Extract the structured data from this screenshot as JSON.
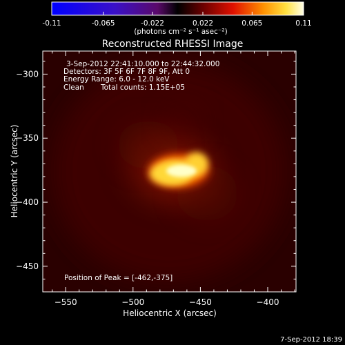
{
  "colorbar": {
    "ticks": [
      "-0.11",
      "-0.065",
      "-0.022",
      "0.022",
      "0.065",
      "0.11"
    ],
    "tick_values": [
      -0.11,
      -0.065,
      -0.022,
      0.022,
      0.065,
      0.11
    ],
    "range": [
      -0.11,
      0.11
    ],
    "units_label": "(photons cm⁻² s⁻¹ asec⁻²)"
  },
  "chart_data": {
    "type": "heatmap",
    "title": "Reconstructed RHESSI Image",
    "xlabel": "Heliocentric X (arcsec)",
    "ylabel": "Heliocentric Y (arcsec)",
    "xlim": [
      -567,
      -379
    ],
    "ylim": [
      -470,
      -282
    ],
    "xticks": [
      -550,
      -500,
      -450,
      -400
    ],
    "yticks": [
      -300,
      -350,
      -400,
      -450
    ],
    "source": {
      "peak_x": -462,
      "peak_y": -375,
      "peak_flux": 0.11
    },
    "annotations": {
      "time_range": "3-Sep-2012 22:41:10.000 to 22:44:32.000",
      "detectors": "Detectors: 3F 5F 6F 7F 8F 9F, Att 0",
      "energy_range": "Energy Range: 6.0 - 12.0 keV",
      "method": "Clean",
      "total_counts": "Total counts: 1.15E+05",
      "peak_position": "Position of Peak = [-462,-375]"
    }
  },
  "footer": {
    "date": "7-Sep-2012 18:39"
  }
}
